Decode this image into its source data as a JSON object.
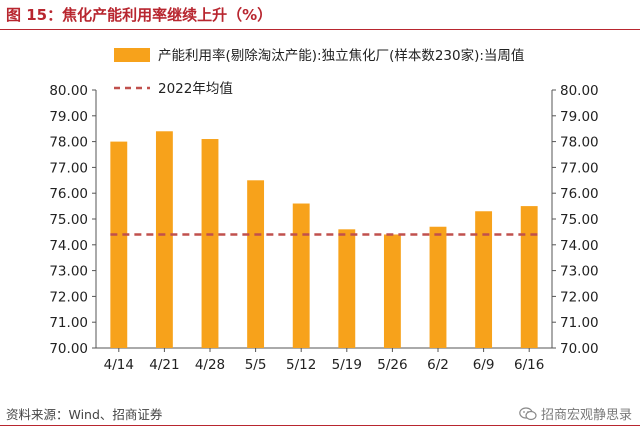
{
  "figure_title": "图 15：焦化产能利用率继续上升（%）",
  "source": "资料来源：Wind、招商证券",
  "watermark": "招商宏观静思录",
  "colors": {
    "bar": "#f7a21b",
    "avg_line": "#c0504d",
    "title": "#b8262f"
  },
  "chart_data": {
    "type": "bar",
    "categories": [
      "4/14",
      "4/21",
      "4/28",
      "5/5",
      "5/12",
      "5/19",
      "5/26",
      "6/2",
      "6/9",
      "6/16"
    ],
    "series": [
      {
        "name": "产能利用率(剔除淘汰产能):独立焦化厂(样本数230家):当周值",
        "type": "bar",
        "values": [
          78.0,
          78.4,
          78.1,
          76.5,
          75.6,
          74.6,
          74.4,
          74.7,
          75.3,
          75.5
        ]
      },
      {
        "name": "2022年均值",
        "type": "line",
        "style": "dashed",
        "values": [
          74.4,
          74.4,
          74.4,
          74.4,
          74.4,
          74.4,
          74.4,
          74.4,
          74.4,
          74.4
        ]
      }
    ],
    "ylim": [
      70,
      80
    ],
    "yticks": [
      "70.00",
      "71.00",
      "72.00",
      "73.00",
      "74.00",
      "75.00",
      "76.00",
      "77.00",
      "78.00",
      "79.00",
      "80.00"
    ],
    "right_axis_mirrors_left": true,
    "legend_position": "top",
    "grid": false,
    "xlabel": "",
    "ylabel": ""
  }
}
